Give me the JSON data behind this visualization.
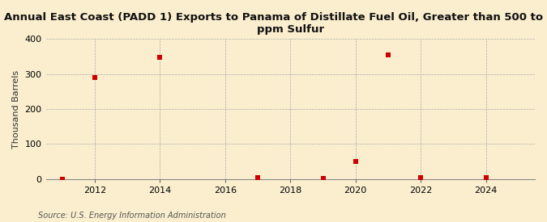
{
  "title": "Annual East Coast (PADD 1) Exports to Panama of Distillate Fuel Oil, Greater than 500 to 2000\nppm Sulfur",
  "ylabel": "Thousand Barrels",
  "source": "Source: U.S. Energy Information Administration",
  "background_color": "#faeece",
  "x_data": [
    2011,
    2012,
    2014,
    2017,
    2019,
    2020,
    2021,
    2022,
    2024
  ],
  "y_data": [
    0,
    289,
    347,
    3,
    2,
    50,
    354,
    5,
    3
  ],
  "xlim": [
    2010.5,
    2025.5
  ],
  "ylim": [
    0,
    400
  ],
  "yticks": [
    0,
    100,
    200,
    300,
    400
  ],
  "xticks": [
    2012,
    2014,
    2016,
    2018,
    2020,
    2022,
    2024
  ],
  "marker_color": "#cc0000",
  "marker_size": 5,
  "grid_color": "#aaaaaa",
  "title_fontsize": 9.5,
  "axis_label_fontsize": 8,
  "tick_fontsize": 8,
  "source_fontsize": 7
}
